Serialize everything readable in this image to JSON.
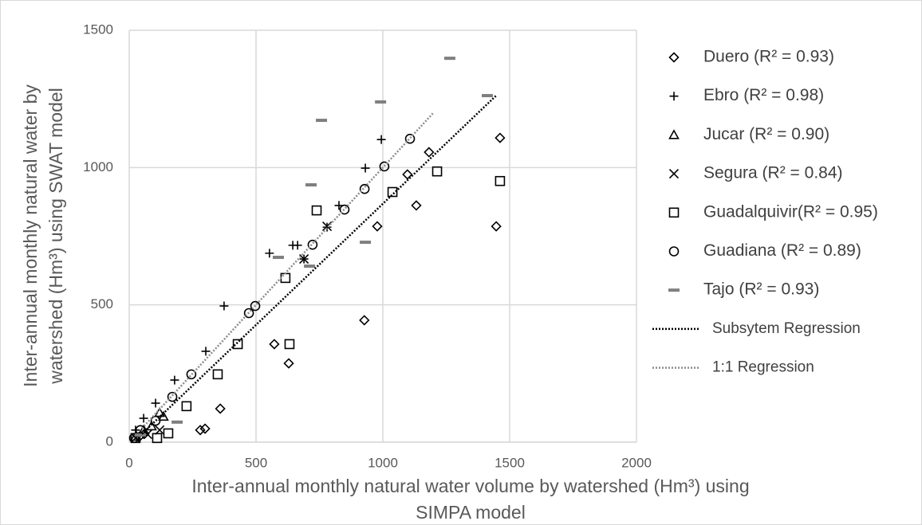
{
  "chart_data": {
    "type": "scatter",
    "xlabel": [
      "Inter-annual monthly natural water volume by watershed (Hm³) using",
      "SIMPA model"
    ],
    "ylabel": [
      "Inter-annual monthly natural water by",
      "watershed (Hm³) using SWAT model"
    ],
    "xlim": [
      0,
      2000
    ],
    "ylim": [
      0,
      1500
    ],
    "xticks": [
      0,
      500,
      1000,
      1500,
      2000
    ],
    "yticks": [
      0,
      500,
      1000,
      1500
    ],
    "grid": true,
    "legend": "right",
    "series": [
      {
        "name": "Duero (R² = 0.93)",
        "marker": "diamond",
        "color": "#000000",
        "x": [
          1182,
          1462,
          1097,
          1132,
          978,
          1447,
          927,
          572,
          629,
          359,
          280,
          299,
          40,
          60
        ],
        "values": [
          1056,
          1108,
          975,
          862,
          786,
          786,
          444,
          357,
          287,
          122,
          44,
          49,
          20,
          30
        ]
      },
      {
        "name": "Ebro   (R² = 0.98)",
        "marker": "plus",
        "color": "#000000",
        "x": [
          994,
          931,
          827,
          553,
          645,
          664,
          689,
          780,
          374,
          302,
          179,
          104,
          57,
          25
        ],
        "values": [
          1102,
          998,
          862,
          688,
          717,
          717,
          667,
          783,
          496,
          331,
          226,
          142,
          87,
          44
        ]
      },
      {
        "name": "Jucar  (R² = 0.90)",
        "marker": "triangle",
        "color": "#000000",
        "x": [
          120,
          135,
          57,
          25,
          88
        ],
        "values": [
          107,
          93,
          44,
          20,
          58
        ]
      },
      {
        "name": "Segura (R² = 0.84)",
        "marker": "x",
        "color": "#000000",
        "x": [
          780,
          689,
          25,
          72,
          120
        ],
        "values": [
          786,
          667,
          15,
          29,
          44
        ]
      },
      {
        "name": "Guadalquivir(R² = 0.95)",
        "marker": "square",
        "color": "#000000",
        "x": [
          1214,
          1462,
          1038,
          739,
          616,
          632,
          428,
          349,
          226,
          154,
          110,
          25
        ],
        "values": [
          986,
          951,
          911,
          844,
          598,
          357,
          357,
          247,
          131,
          32,
          15,
          15
        ]
      },
      {
        "name": "Guadiana (R² = 0.89)",
        "marker": "circle",
        "color": "#000000",
        "x": [
          1107,
          1006,
          928,
          849,
          723,
          497,
          472,
          245,
          170,
          104,
          44,
          19
        ],
        "values": [
          1105,
          1004,
          922,
          847,
          719,
          496,
          470,
          247,
          165,
          78,
          44,
          15
        ]
      },
      {
        "name": "Tajo  (R² = 0.93)",
        "marker": "dash",
        "color": "#7f7f7f",
        "x": [
          1264,
          1412,
          991,
          758,
          717,
          931,
          588,
          711,
          189,
          44
        ],
        "values": [
          1398,
          1262,
          1239,
          1172,
          937,
          728,
          673,
          641,
          73,
          26
        ]
      },
      {
        "name": "Subsytem Regression",
        "marker": "line",
        "color": "#000000",
        "x": [
          50,
          1450
        ],
        "values": [
          30,
          1265
        ]
      },
      {
        "name": "1:1 Regression",
        "marker": "line",
        "color": "#8c8c8c",
        "x": [
          50,
          1200
        ],
        "values": [
          50,
          1200
        ]
      }
    ]
  }
}
